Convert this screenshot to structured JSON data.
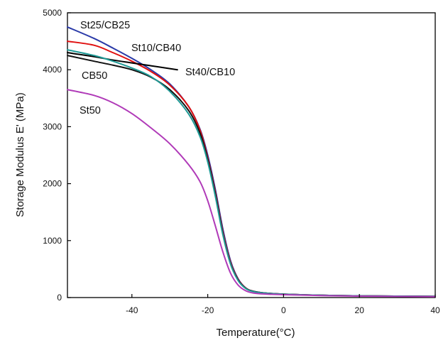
{
  "chart_data": {
    "type": "line",
    "title": "",
    "xlabel": "Temperature(°C)",
    "ylabel": "Storage Modulus E' (MPa)",
    "xlim": [
      -57,
      40
    ],
    "ylim": [
      0,
      5000
    ],
    "xticks": [
      -40,
      -20,
      0,
      20,
      40
    ],
    "yticks": [
      0,
      1000,
      2000,
      3000,
      4000,
      5000
    ],
    "grid": false,
    "legend": "inline labels",
    "series": [
      {
        "name": "St25/CB25",
        "color": "#2a3aa8",
        "x": [
          -57,
          -50,
          -45,
          -40,
          -35,
          -30,
          -25,
          -22,
          -20,
          -18,
          -16,
          -14,
          -12,
          -10,
          -8,
          -5,
          0,
          10,
          20,
          40
        ],
        "y": [
          4750,
          4550,
          4380,
          4200,
          4000,
          3750,
          3350,
          2950,
          2500,
          1900,
          1200,
          650,
          330,
          170,
          110,
          80,
          60,
          40,
          30,
          20
        ]
      },
      {
        "name": "St10/CB40",
        "color": "#e01010",
        "x": [
          -57,
          -50,
          -45,
          -40,
          -35,
          -30,
          -25,
          -22,
          -20,
          -18,
          -16,
          -14,
          -12,
          -10,
          -8,
          -5,
          0,
          10,
          20,
          40
        ],
        "y": [
          4500,
          4430,
          4300,
          4150,
          3970,
          3730,
          3350,
          2930,
          2450,
          1850,
          1150,
          620,
          320,
          170,
          110,
          80,
          60,
          40,
          30,
          20
        ]
      },
      {
        "name": "St40/CB10",
        "color": "#000000",
        "x": [
          -57,
          -50,
          -45,
          -40,
          -35,
          -30,
          -28
        ],
        "y": [
          4300,
          4230,
          4170,
          4120,
          4070,
          4020,
          4000
        ]
      },
      {
        "name": "CB50",
        "color": "#111111",
        "x": [
          -57,
          -50,
          -45,
          -40,
          -35,
          -30,
          -25,
          -22,
          -20,
          -18,
          -16,
          -14,
          -12,
          -10,
          -8,
          -5,
          0,
          10,
          20,
          40
        ],
        "y": [
          4250,
          4150,
          4080,
          4000,
          3870,
          3650,
          3280,
          2880,
          2420,
          1820,
          1120,
          600,
          310,
          165,
          110,
          80,
          60,
          40,
          30,
          20
        ]
      },
      {
        "name": "",
        "color": "#1f9a96",
        "x": [
          -57,
          -50,
          -45,
          -40,
          -35,
          -30,
          -25,
          -22,
          -20,
          -18,
          -16,
          -14,
          -12,
          -10,
          -8,
          -5,
          0,
          10,
          20,
          40
        ],
        "y": [
          4350,
          4250,
          4150,
          4030,
          3880,
          3620,
          3220,
          2820,
          2380,
          1780,
          1100,
          590,
          300,
          160,
          105,
          78,
          58,
          40,
          30,
          20
        ]
      },
      {
        "name": "St50",
        "color": "#b03ab8",
        "x": [
          -57,
          -50,
          -45,
          -40,
          -35,
          -30,
          -25,
          -22,
          -20,
          -18,
          -16,
          -14,
          -12,
          -10,
          -8,
          -5,
          0,
          10,
          20,
          40
        ],
        "y": [
          3650,
          3550,
          3420,
          3230,
          2980,
          2700,
          2330,
          2030,
          1700,
          1260,
          800,
          430,
          220,
          120,
          80,
          62,
          50,
          35,
          25,
          15
        ]
      }
    ]
  }
}
